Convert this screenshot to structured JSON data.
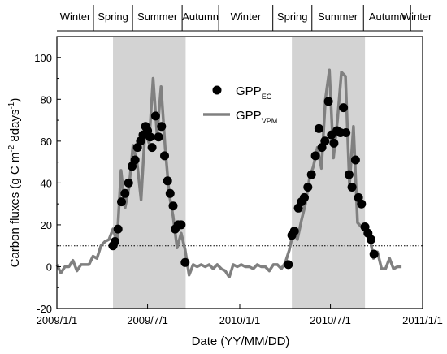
{
  "chart_data": {
    "type": "scatter+line",
    "xlabel": "Date (YY/MM/DD)",
    "ylabel_parts": {
      "main": "Carbon fluxes (g C m",
      "sup1": "-2",
      "mid": " 8days",
      "sup2": "-1",
      "end": ")"
    },
    "xlim": [
      "2009-01-01",
      "2011-01-01"
    ],
    "ylim": [
      -20,
      110
    ],
    "x_ticks": [
      {
        "date": "2009-01-01",
        "label": "2009/1/1"
      },
      {
        "date": "2009-07-01",
        "label": "2009/7/1"
      },
      {
        "date": "2010-01-01",
        "label": "2010/1/1"
      },
      {
        "date": "2010-07-01",
        "label": "2010/7/1"
      },
      {
        "date": "2011-01-01",
        "label": "2011/1/1"
      }
    ],
    "y_ticks": [
      -20,
      0,
      20,
      40,
      60,
      80,
      100
    ],
    "seasons": [
      {
        "label": "Winter",
        "start": "2009-01-01",
        "end": "2009-03-15"
      },
      {
        "label": "Spring",
        "start": "2009-03-15",
        "end": "2009-06-01"
      },
      {
        "label": "Summer",
        "start": "2009-06-01",
        "end": "2009-09-08"
      },
      {
        "label": "Autumn",
        "start": "2009-09-08",
        "end": "2009-11-20"
      },
      {
        "label": "Winter",
        "start": "2009-11-20",
        "end": "2010-03-08"
      },
      {
        "label": "Spring",
        "start": "2010-03-08",
        "end": "2010-05-25"
      },
      {
        "label": "Summer",
        "start": "2010-05-25",
        "end": "2010-09-05"
      },
      {
        "label": "Autumn",
        "start": "2010-09-05",
        "end": "2010-12-08"
      },
      {
        "label": "Winter",
        "start": "2010-12-08",
        "end": "2011-01-01"
      }
    ],
    "shaded_periods": [
      {
        "start": "2009-04-23",
        "end": "2009-09-15"
      },
      {
        "start": "2010-04-15",
        "end": "2010-09-08"
      }
    ],
    "reference_line_y": 10,
    "legend": {
      "position": "upper-middle"
    },
    "series": [
      {
        "name_main": "GPP",
        "name_sub": "EC",
        "style": "dots",
        "color": "#000000",
        "points": [
          [
            "2009-04-23",
            10
          ],
          [
            "2009-04-27",
            12
          ],
          [
            "2009-05-03",
            18
          ],
          [
            "2009-05-10",
            31
          ],
          [
            "2009-05-17",
            35
          ],
          [
            "2009-05-24",
            40
          ],
          [
            "2009-05-31",
            48
          ],
          [
            "2009-06-06",
            51
          ],
          [
            "2009-06-11",
            57
          ],
          [
            "2009-06-17",
            60
          ],
          [
            "2009-06-22",
            63
          ],
          [
            "2009-06-27",
            67
          ],
          [
            "2009-07-01",
            65
          ],
          [
            "2009-07-06",
            62
          ],
          [
            "2009-07-10",
            57
          ],
          [
            "2009-07-17",
            72
          ],
          [
            "2009-07-23",
            62
          ],
          [
            "2009-07-29",
            67
          ],
          [
            "2009-08-04",
            53
          ],
          [
            "2009-08-10",
            41
          ],
          [
            "2009-08-15",
            35
          ],
          [
            "2009-08-21",
            29
          ],
          [
            "2009-08-25",
            18
          ],
          [
            "2009-08-31",
            20
          ],
          [
            "2009-09-06",
            20
          ],
          [
            "2009-09-14",
            2
          ],
          [
            "2010-04-08",
            1
          ],
          [
            "2010-04-15",
            15
          ],
          [
            "2010-04-20",
            17
          ],
          [
            "2010-04-28",
            28
          ],
          [
            "2010-05-04",
            31
          ],
          [
            "2010-05-10",
            33
          ],
          [
            "2010-05-17",
            38
          ],
          [
            "2010-05-24",
            44
          ],
          [
            "2010-06-01",
            53
          ],
          [
            "2010-06-08",
            66
          ],
          [
            "2010-06-14",
            57
          ],
          [
            "2010-06-20",
            60
          ],
          [
            "2010-06-27",
            79
          ],
          [
            "2010-07-03",
            63
          ],
          [
            "2010-07-08",
            59
          ],
          [
            "2010-07-14",
            65
          ],
          [
            "2010-07-21",
            64
          ],
          [
            "2010-07-27",
            76
          ],
          [
            "2010-08-01",
            64
          ],
          [
            "2010-08-07",
            44
          ],
          [
            "2010-08-13",
            38
          ],
          [
            "2010-08-20",
            51
          ],
          [
            "2010-08-26",
            33
          ],
          [
            "2010-09-01",
            30
          ],
          [
            "2010-09-08",
            19
          ],
          [
            "2010-09-14",
            16
          ],
          [
            "2010-09-20",
            13
          ],
          [
            "2010-09-26",
            6
          ]
        ]
      },
      {
        "name_main": "GPP",
        "name_sub": "VPM",
        "style": "line",
        "color": "#808080",
        "points": [
          [
            "2009-01-01",
            1
          ],
          [
            "2009-01-09",
            -3
          ],
          [
            "2009-01-17",
            0
          ],
          [
            "2009-01-25",
            0
          ],
          [
            "2009-02-02",
            3
          ],
          [
            "2009-02-10",
            -2
          ],
          [
            "2009-02-18",
            1
          ],
          [
            "2009-02-26",
            1
          ],
          [
            "2009-03-06",
            1
          ],
          [
            "2009-03-14",
            5
          ],
          [
            "2009-03-22",
            4
          ],
          [
            "2009-03-30",
            10
          ],
          [
            "2009-04-07",
            12
          ],
          [
            "2009-04-15",
            13
          ],
          [
            "2009-04-23",
            18
          ],
          [
            "2009-05-01",
            12
          ],
          [
            "2009-05-09",
            46
          ],
          [
            "2009-05-17",
            28
          ],
          [
            "2009-05-25",
            38
          ],
          [
            "2009-06-02",
            58
          ],
          [
            "2009-06-10",
            50
          ],
          [
            "2009-06-18",
            32
          ],
          [
            "2009-06-26",
            65
          ],
          [
            "2009-07-04",
            59
          ],
          [
            "2009-07-12",
            90
          ],
          [
            "2009-07-20",
            63
          ],
          [
            "2009-07-28",
            86
          ],
          [
            "2009-08-05",
            57
          ],
          [
            "2009-08-13",
            35
          ],
          [
            "2009-08-21",
            24
          ],
          [
            "2009-08-29",
            9
          ],
          [
            "2009-09-06",
            16
          ],
          [
            "2009-09-14",
            8
          ],
          [
            "2009-09-22",
            -4
          ],
          [
            "2009-09-30",
            1
          ],
          [
            "2009-10-08",
            0
          ],
          [
            "2009-10-16",
            1
          ],
          [
            "2009-10-24",
            0
          ],
          [
            "2009-11-01",
            1
          ],
          [
            "2009-11-09",
            -1
          ],
          [
            "2009-11-17",
            1
          ],
          [
            "2009-11-25",
            -1
          ],
          [
            "2009-12-03",
            -2
          ],
          [
            "2009-12-11",
            -5
          ],
          [
            "2009-12-19",
            1
          ],
          [
            "2009-12-27",
            0
          ],
          [
            "2010-01-04",
            1
          ],
          [
            "2010-01-12",
            0
          ],
          [
            "2010-01-20",
            0
          ],
          [
            "2010-01-28",
            -1
          ],
          [
            "2010-02-05",
            1
          ],
          [
            "2010-02-13",
            0
          ],
          [
            "2010-02-21",
            0
          ],
          [
            "2010-03-01",
            -2
          ],
          [
            "2010-03-09",
            1
          ],
          [
            "2010-03-17",
            1
          ],
          [
            "2010-03-25",
            -1
          ],
          [
            "2010-04-02",
            2
          ],
          [
            "2010-04-10",
            8
          ],
          [
            "2010-04-18",
            17
          ],
          [
            "2010-04-26",
            13
          ],
          [
            "2010-05-04",
            22
          ],
          [
            "2010-05-12",
            30
          ],
          [
            "2010-05-20",
            42
          ],
          [
            "2010-05-28",
            48
          ],
          [
            "2010-06-05",
            57
          ],
          [
            "2010-06-13",
            47
          ],
          [
            "2010-06-21",
            80
          ],
          [
            "2010-06-29",
            94
          ],
          [
            "2010-07-07",
            52
          ],
          [
            "2010-07-15",
            70
          ],
          [
            "2010-07-23",
            93
          ],
          [
            "2010-07-31",
            91
          ],
          [
            "2010-08-08",
            39
          ],
          [
            "2010-08-16",
            67
          ],
          [
            "2010-08-24",
            21
          ],
          [
            "2010-09-01",
            19
          ],
          [
            "2010-09-09",
            17
          ],
          [
            "2010-09-17",
            15
          ],
          [
            "2010-09-25",
            4
          ],
          [
            "2010-10-03",
            7
          ],
          [
            "2010-10-11",
            -1
          ],
          [
            "2010-10-19",
            -1
          ],
          [
            "2010-10-27",
            4
          ],
          [
            "2010-11-04",
            -1
          ],
          [
            "2010-11-12",
            0
          ],
          [
            "2010-11-20",
            0
          ]
        ]
      }
    ]
  }
}
